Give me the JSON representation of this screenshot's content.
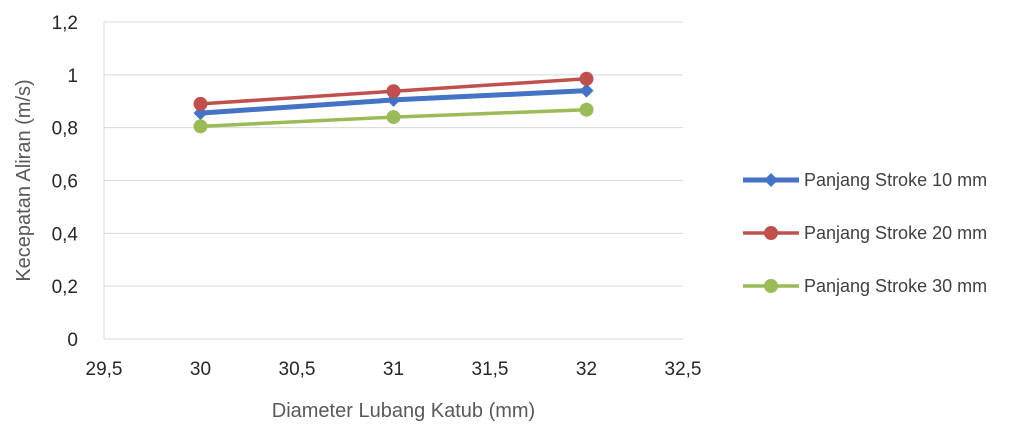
{
  "chart_data": {
    "type": "line",
    "title": "",
    "xlabel": "Diameter Lubang Katub  (mm)",
    "ylabel": "Kecepatan Aliran (m/s)",
    "xlim": [
      29.5,
      32.5
    ],
    "ylim": [
      0,
      1.2
    ],
    "x_ticks": [
      "29,5",
      "30",
      "30,5",
      "31",
      "31,5",
      "32",
      "32,5"
    ],
    "y_ticks": [
      "0",
      "0,2",
      "0,4",
      "0,6",
      "0,8",
      "1",
      "1,2"
    ],
    "x_tick_values": [
      29.5,
      30,
      30.5,
      31,
      31.5,
      32,
      32.5
    ],
    "y_tick_values": [
      0,
      0.2,
      0.4,
      0.6,
      0.8,
      1.0,
      1.2
    ],
    "grid": "horizontal",
    "legend_position": "right",
    "x": [
      30,
      31,
      32
    ],
    "series": [
      {
        "name": "Panjang Stroke 10 mm",
        "values": [
          0.855,
          0.905,
          0.94
        ],
        "color": "#4472C4",
        "marker": "diamond"
      },
      {
        "name": "Panjang Stroke 20 mm",
        "values": [
          0.89,
          0.938,
          0.985
        ],
        "color": "#C0504D",
        "marker": "circle"
      },
      {
        "name": "Panjang Stroke 30 mm",
        "values": [
          0.805,
          0.84,
          0.868
        ],
        "color": "#9BBB59",
        "marker": "circle"
      }
    ]
  }
}
